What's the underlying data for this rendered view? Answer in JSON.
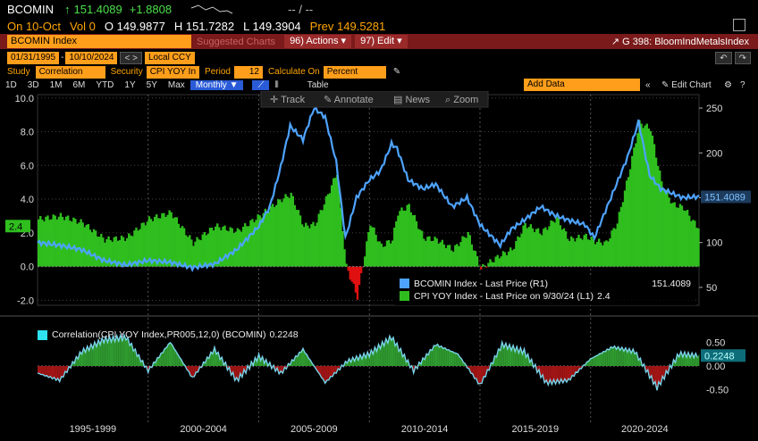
{
  "quote": {
    "ticker": "BCOMIN",
    "arrow": "↑",
    "last": "151.4089",
    "change": "+1.8808",
    "dashes": "-- / --",
    "on_date": "On 10-Oct",
    "vol": "Vol 0",
    "open": "O 149.9877",
    "high": "H 151.7282",
    "low": "L 149.3904",
    "prev": "Prev 149.5281"
  },
  "toolbar": {
    "security_name": "BCOMIN Index",
    "suggested_charts": "Suggested Charts",
    "actions_label": "Actions",
    "actions_num": "96)",
    "edit_label": "Edit",
    "edit_num": "97)",
    "chart_id": "G 398: BloomIndMetalsIndex"
  },
  "controls": {
    "start_date": "01/31/1995",
    "end_date": "10/10/2024",
    "currency": "Local CCY",
    "study_label": "Study",
    "study_value": "Correlation",
    "security_label": "Security",
    "security_value": "CPI YOY In",
    "period_label": "Period",
    "period_value": "12",
    "calc_label": "Calculate On",
    "calc_value": "Percent"
  },
  "periods": [
    "1D",
    "3D",
    "1M",
    "6M",
    "YTD",
    "1Y",
    "5Y",
    "Max"
  ],
  "frequency": "Monthly ▼",
  "table_label": "Table",
  "add_data": "Add Data",
  "edit_chart": "Edit Chart",
  "overlay_tools": [
    "Track",
    "Annotate",
    "News",
    "Zoom"
  ],
  "colors": {
    "bcomin_line": "#4ea3ff",
    "cpi_pos": "#2fbe1e",
    "cpi_neg": "#e01010",
    "corr_line": "#78d3e8",
    "corr_pos": "#2f9a2f",
    "corr_neg": "#a31515"
  },
  "chart_data": [
    {
      "type": "line",
      "x": [
        "1995-01",
        "1996-01",
        "1997-01",
        "1998-01",
        "1999-01",
        "2000-01",
        "2001-01",
        "2002-01",
        "2003-01",
        "2004-01",
        "2005-01",
        "2005-07",
        "2006-01",
        "2006-06",
        "2007-01",
        "2007-07",
        "2008-01",
        "2008-04",
        "2008-07",
        "2008-12",
        "2009-06",
        "2010-01",
        "2010-07",
        "2011-01",
        "2011-04",
        "2011-10",
        "2012-06",
        "2013-01",
        "2013-10",
        "2014-06",
        "2015-01",
        "2015-12",
        "2016-06",
        "2017-01",
        "2017-10",
        "2018-06",
        "2019-01",
        "2019-10",
        "2020-03",
        "2020-09",
        "2021-03",
        "2021-09",
        "2022-03",
        "2022-09",
        "2023-03",
        "2023-09",
        "2024-03",
        "2024-10"
      ],
      "series": [
        {
          "name": "BCOMIN Index - Last Price (R1)",
          "axis": "right",
          "last_value_label": "151.4089",
          "values": [
            100,
            97,
            92,
            80,
            75,
            80,
            78,
            72,
            76,
            92,
            118,
            140,
            185,
            230,
            215,
            250,
            240,
            215,
            190,
            105,
            150,
            170,
            180,
            210,
            205,
            170,
            160,
            165,
            140,
            150,
            120,
            97,
            115,
            125,
            140,
            130,
            125,
            120,
            105,
            135,
            165,
            195,
            235,
            175,
            160,
            155,
            150,
            151
          ]
        },
        {
          "name": "CPI YOY Index - Last Price on 9/30/24 (L1)",
          "axis": "left",
          "last_value_label": "2.4",
          "values": [
            2.8,
            3.0,
            2.6,
            1.6,
            1.7,
            2.8,
            3.2,
            1.4,
            2.4,
            2.1,
            3.0,
            3.5,
            4.0,
            4.3,
            2.4,
            2.5,
            4.0,
            4.8,
            5.6,
            0.0,
            -1.8,
            2.6,
            1.2,
            1.6,
            3.2,
            3.6,
            1.7,
            1.6,
            1.0,
            2.0,
            -0.1,
            0.7,
            1.0,
            2.5,
            2.0,
            2.9,
            1.6,
            1.8,
            1.5,
            1.4,
            2.6,
            5.4,
            8.5,
            8.2,
            5.0,
            3.7,
            3.5,
            2.4
          ]
        }
      ],
      "left_ticks": [
        "10.0",
        "8.0",
        "6.0",
        "4.0",
        "2.0",
        "0.0",
        "-2.0"
      ],
      "right_ticks": [
        "250",
        "200",
        "150",
        "100",
        "50"
      ],
      "ylim_left": [
        -2.3,
        10.2
      ],
      "ylim_right": [
        30,
        265
      ]
    },
    {
      "type": "area",
      "title": "Correlation(CPI YOY Index,PR005,12,0) (BCOMIN)",
      "last_value_label": "0.2248",
      "x": [
        "1995-01",
        "1996-01",
        "1997-01",
        "1998-01",
        "1999-01",
        "2000-01",
        "2001-01",
        "2002-01",
        "2003-01",
        "2004-01",
        "2005-01",
        "2006-01",
        "2007-01",
        "2008-01",
        "2009-01",
        "2010-01",
        "2011-01",
        "2012-01",
        "2013-01",
        "2014-01",
        "2015-01",
        "2016-01",
        "2017-01",
        "2018-01",
        "2019-01",
        "2020-01",
        "2021-01",
        "2022-01",
        "2023-01",
        "2024-01",
        "2024-10"
      ],
      "values": [
        -0.15,
        -0.3,
        0.3,
        0.55,
        0.6,
        -0.1,
        0.5,
        -0.25,
        0.35,
        -0.3,
        0.2,
        -0.15,
        0.35,
        -0.35,
        0.1,
        0.25,
        0.6,
        -0.1,
        0.45,
        0.25,
        -0.4,
        0.45,
        0.3,
        -0.35,
        -0.3,
        0.15,
        0.4,
        0.3,
        -0.45,
        0.25,
        0.22
      ],
      "ticks": [
        "0.50",
        "0.00",
        "-0.50"
      ],
      "ylim": [
        -0.75,
        0.75
      ],
      "period_labels": [
        "1995-1999",
        "2000-2004",
        "2005-2009",
        "2010-2014",
        "2015-2019",
        "2020-2024"
      ]
    }
  ]
}
